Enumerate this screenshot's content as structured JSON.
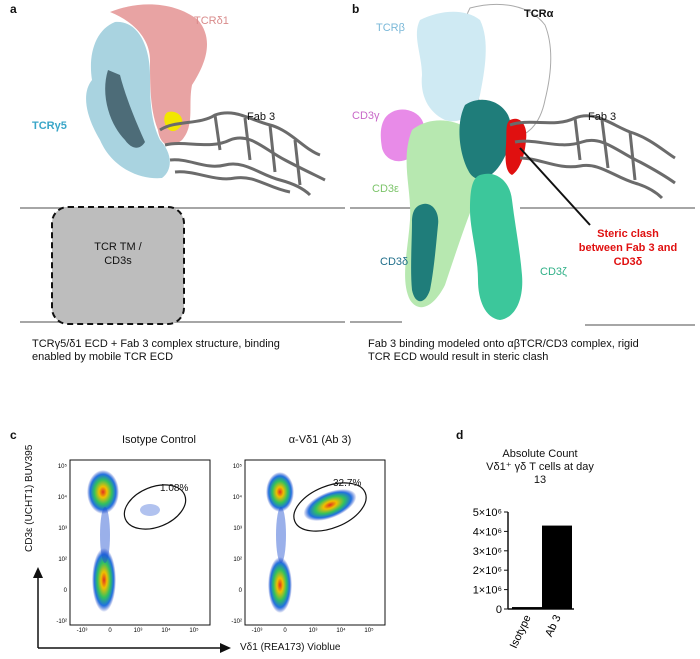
{
  "panels": {
    "a": "a",
    "b": "b",
    "c": "c",
    "d": "d"
  },
  "panel_a": {
    "labels": {
      "tcr_delta1": "TCRδ1",
      "tcr_gamma5": "TCRγ5",
      "fab3": "Fab 3",
      "tm_box": "TCR TM /\nCD3s"
    },
    "caption": "TCRγ5/δ1 ECD + Fab 3 complex structure, binding enabled by mobile TCR ECD"
  },
  "panel_b": {
    "labels": {
      "tcr_beta": "TCRβ",
      "tcr_alpha": "TCRα",
      "cd3_gamma": "CD3γ",
      "cd3_epsilon": "CD3ε",
      "cd3_delta": "CD3δ",
      "cd3_zeta": "CD3ζ",
      "fab3": "Fab 3",
      "clash": "Steric clash\nbetween Fab 3 and\nCD3δ"
    },
    "caption": "Fab 3 binding modeled onto αβTCR/CD3 complex, rigid TCR ECD would result in steric clash"
  },
  "panel_c": {
    "plots": [
      {
        "title": "Isotype Control",
        "gate_percent": "1.08%"
      },
      {
        "title": "α-Vδ1 (Ab 3)",
        "gate_percent": "32.7%"
      }
    ],
    "ylabel": "CD3ε (UCHT1) BUV395",
    "xlabel": "Vδ1 (REA173) Vioblue",
    "x_ticks": [
      "-10³",
      "0",
      "10³",
      "10⁴",
      "10⁵"
    ],
    "y_ticks": [
      "10⁵",
      "10⁴",
      "10³",
      "10²",
      "0",
      "-10²"
    ]
  },
  "chart_data": {
    "type": "bar",
    "title": "Absolute Count\nVδ1⁺ γδ T cells at day\n13",
    "categories": [
      "Isotype",
      "Ab 3"
    ],
    "values": [
      100000,
      4300000
    ],
    "ylim": [
      0,
      5000000
    ],
    "yticks": [
      {
        "value": 0,
        "label": "0"
      },
      {
        "value": 1000000,
        "label": "1×10⁶"
      },
      {
        "value": 2000000,
        "label": "2×10⁶"
      },
      {
        "value": 3000000,
        "label": "3×10⁶"
      },
      {
        "value": 4000000,
        "label": "4×10⁶"
      },
      {
        "value": 5000000,
        "label": "5×10⁶"
      }
    ],
    "colors": {
      "bar": "#000000"
    }
  },
  "colors": {
    "tcr_delta1": "#e8a3a3",
    "tcr_gamma5": "#a9d3e0",
    "fab": "#6b6b6b",
    "yellow": "#f2e600",
    "tcr_beta": "#cfeaf3",
    "cd3_gamma": "#e88be8",
    "cd3_epsilon": "#b7e8b0",
    "cd3_delta": "#1f7d7a",
    "cd3_zeta": "#3cc79b",
    "clash": "#e01010",
    "tm_box": "#bdbdbd",
    "label_delta1": "#d98b8b",
    "label_gamma5": "#3aa6c8",
    "label_beta": "#7ab8d8",
    "label_cd3g": "#c868c8",
    "label_cd3e": "#7cc46a",
    "label_cd3d": "#1f6e8a",
    "label_cd3z": "#2fb087"
  }
}
